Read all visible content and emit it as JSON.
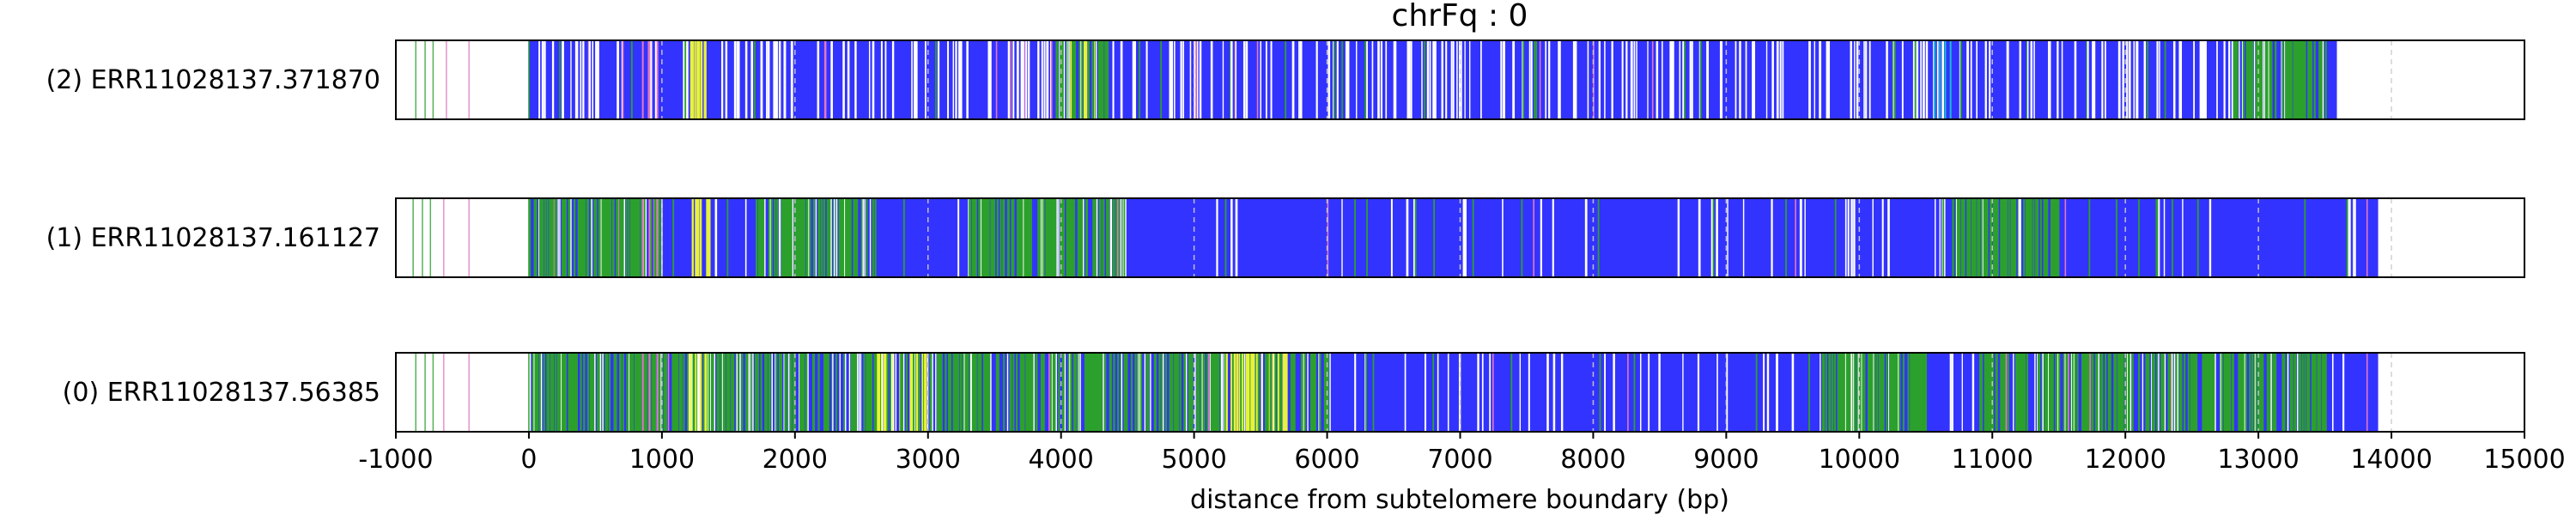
{
  "chart_data": {
    "type": "read-alignment strip plot",
    "title": "chrFq : 0",
    "xlabel": "distance from subtelomere boundary (bp)",
    "xlim": [
      -1000,
      15000
    ],
    "xticks": [
      -1000,
      0,
      1000,
      2000,
      3000,
      4000,
      5000,
      6000,
      7000,
      8000,
      9000,
      10000,
      11000,
      12000,
      13000,
      14000,
      15000
    ],
    "tick_labels": [
      "-1000",
      "0",
      "1000",
      "2000",
      "3000",
      "4000",
      "5000",
      "6000",
      "7000",
      "8000",
      "9000",
      "10000",
      "11000",
      "12000",
      "13000",
      "14000",
      "15000"
    ],
    "dashed_gridlines_x": [
      1000,
      2000,
      3000,
      4000,
      5000,
      6000,
      7000,
      8000,
      9000,
      10000,
      11000,
      12000,
      13000,
      14000
    ],
    "grid": "vertical dashed at 1000 bp intervals",
    "legend": "none",
    "colors": {
      "blue": "#3333ff",
      "green": "#2ca02c",
      "yellow": "#e8f23a",
      "magenta": "#e377c2",
      "white": "#ffffff",
      "grid": "#cccccc",
      "cyan": "#17becf"
    },
    "reads": [
      {
        "name": "(2) ERR11028137.371870",
        "start": 0,
        "end": 13600,
        "pre_marks": [
          {
            "x": -850,
            "color": "green"
          },
          {
            "x": -780,
            "color": "green"
          },
          {
            "x": -720,
            "color": "green"
          },
          {
            "x": -620,
            "color": "magenta"
          },
          {
            "x": -450,
            "color": "magenta"
          }
        ],
        "green_zones": [
          [
            3950,
            4350
          ],
          [
            12800,
            13500
          ]
        ],
        "yellow_zones": [
          [
            1200,
            1350
          ],
          [
            4050,
            4250
          ]
        ],
        "white_density": 0.12,
        "green_density_bg": 0.01
      },
      {
        "name": "(1) ERR11028137.161127",
        "start": 0,
        "end": 13900,
        "pre_marks": [
          {
            "x": -870,
            "color": "green"
          },
          {
            "x": -800,
            "color": "green"
          },
          {
            "x": -740,
            "color": "green"
          },
          {
            "x": -640,
            "color": "magenta"
          },
          {
            "x": -450,
            "color": "magenta"
          }
        ],
        "green_zones": [
          [
            0,
            1000
          ],
          [
            1700,
            2600
          ],
          [
            3300,
            4500
          ],
          [
            10600,
            11500
          ]
        ],
        "yellow_zones": [
          [
            1200,
            1350
          ]
        ],
        "white_density": 0.03,
        "green_density_bg": 0.02
      },
      {
        "name": "(0) ERR11028137.56385",
        "start": 0,
        "end": 13900,
        "pre_marks": [
          {
            "x": -850,
            "color": "green"
          },
          {
            "x": -780,
            "color": "green"
          },
          {
            "x": -720,
            "color": "green"
          },
          {
            "x": -640,
            "color": "magenta"
          },
          {
            "x": -450,
            "color": "magenta"
          }
        ],
        "green_zones": [
          [
            0,
            6000
          ],
          [
            9700,
            10500
          ],
          [
            10900,
            13500
          ]
        ],
        "yellow_zones": [
          [
            1200,
            1350
          ],
          [
            2600,
            3000
          ],
          [
            5200,
            5700
          ]
        ],
        "white_density": 0.04,
        "green_density_bg": 0.015
      }
    ]
  }
}
